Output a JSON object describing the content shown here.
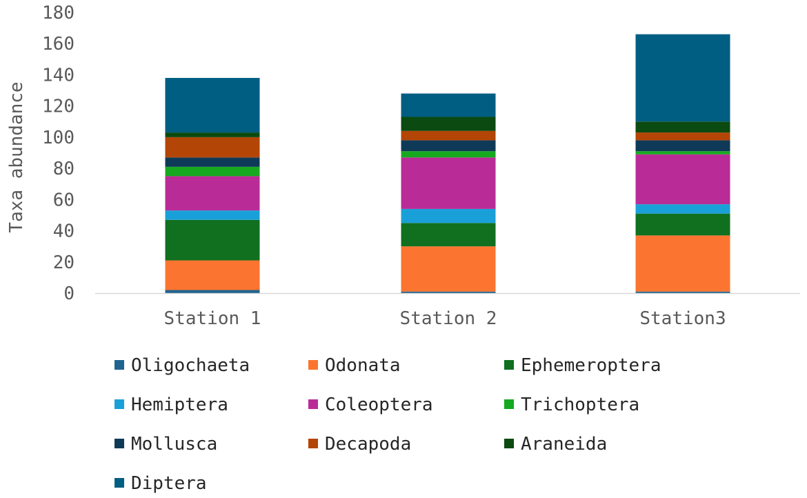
{
  "chart_data": {
    "type": "bar",
    "stacked": true,
    "title": "",
    "xlabel": "",
    "ylabel": "Taxa abundance",
    "ylim": [
      0,
      180
    ],
    "yticks": [
      0,
      20,
      40,
      60,
      80,
      100,
      120,
      140,
      160,
      180
    ],
    "grid": false,
    "legend_position": "bottom",
    "categories": [
      "Station 1",
      "Station 2",
      "Station3"
    ],
    "series": [
      {
        "name": "Oligochaeta",
        "color": "#1f6391",
        "values": [
          2,
          1,
          1
        ]
      },
      {
        "name": "Odonata",
        "color": "#fb7530",
        "values": [
          19,
          29,
          36
        ]
      },
      {
        "name": "Ephemeroptera",
        "color": "#107020",
        "values": [
          26,
          15,
          14
        ]
      },
      {
        "name": "Hemiptera",
        "color": "#1aa0d8",
        "values": [
          6,
          9,
          6
        ]
      },
      {
        "name": "Coleoptera",
        "color": "#b92c97",
        "values": [
          22,
          33,
          32
        ]
      },
      {
        "name": "Trichoptera",
        "color": "#16a91f",
        "values": [
          6,
          4,
          2
        ]
      },
      {
        "name": "Mollusca",
        "color": "#0f3a57",
        "values": [
          6,
          7,
          7
        ]
      },
      {
        "name": "Decapoda",
        "color": "#b34506",
        "values": [
          13,
          6,
          5
        ]
      },
      {
        "name": "Araneida",
        "color": "#0b4a10",
        "values": [
          3,
          9,
          7
        ]
      },
      {
        "name": "Diptera",
        "color": "#005e82",
        "values": [
          35,
          15,
          56
        ]
      }
    ]
  }
}
